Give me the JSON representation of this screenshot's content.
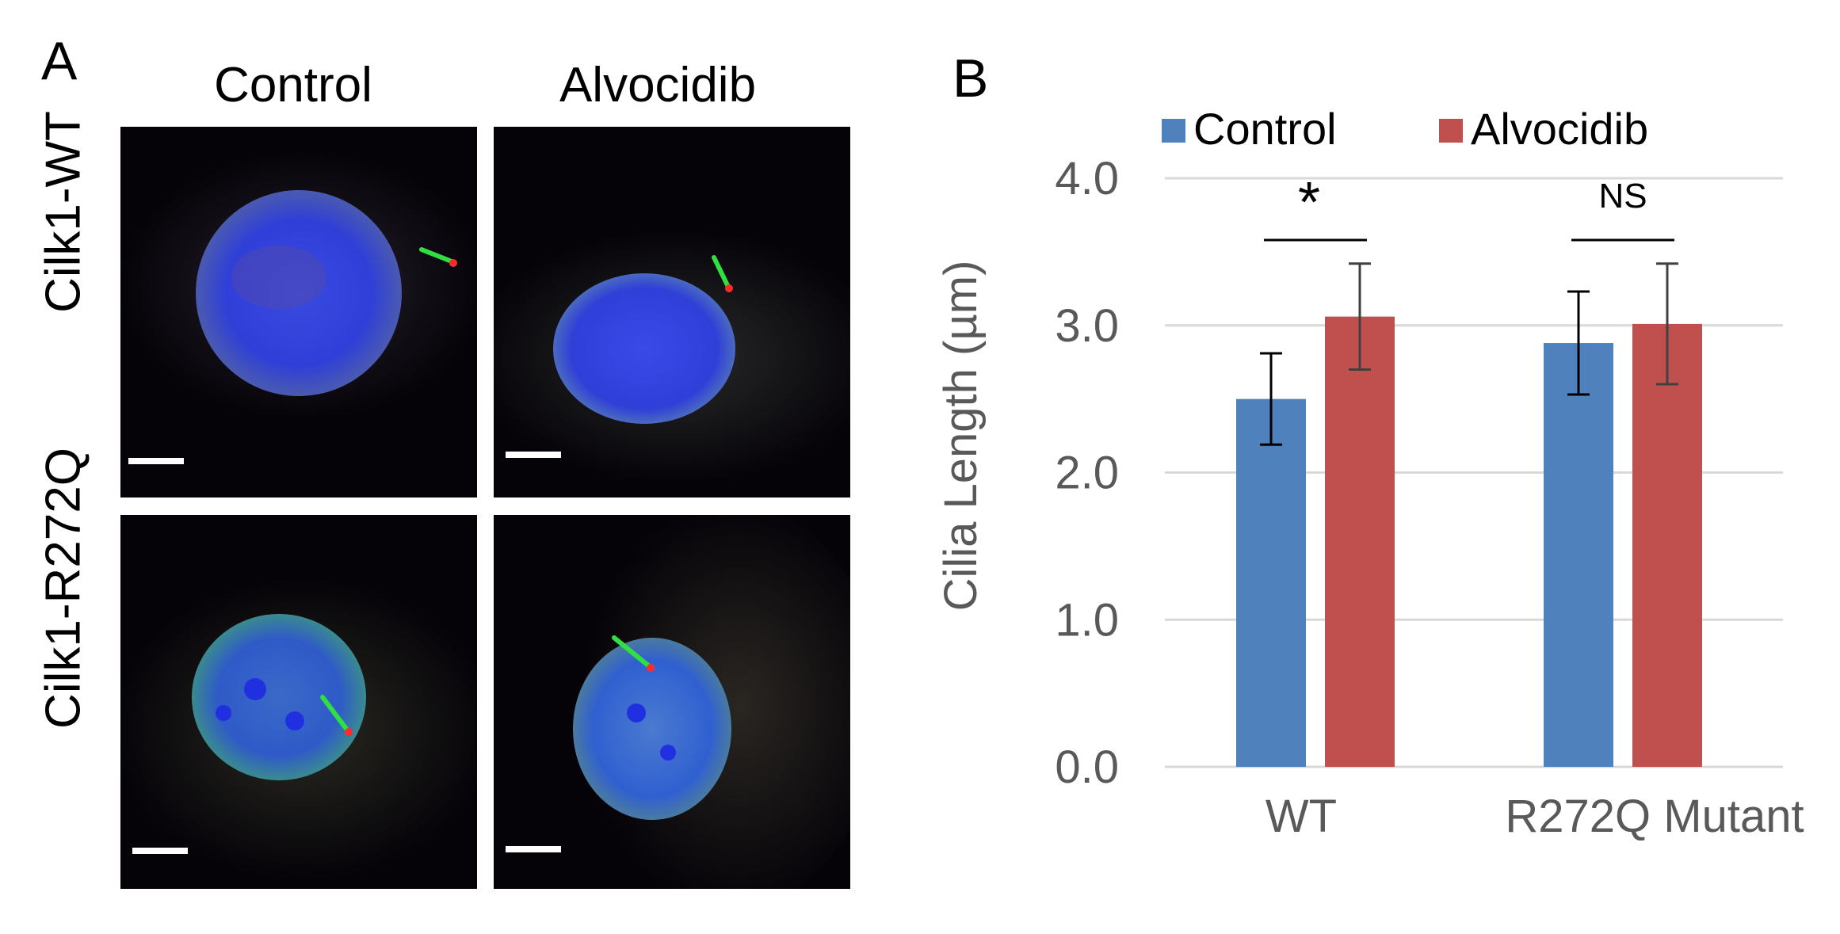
{
  "panel_a": {
    "letter": "A",
    "columns": [
      "Control",
      "Alvocidib"
    ],
    "rows": [
      "Cilk1-WT",
      "Cilk1-R272Q"
    ]
  },
  "panel_b": {
    "letter": "B"
  },
  "colors": {
    "control": "#4f81bd",
    "alvocidib": "#c0504d",
    "axis_text": "#595959",
    "grid": "#d9d9d9",
    "micro_background": "#050308",
    "nucleus": "#2f3fd8",
    "cilium": "#30e040",
    "basal_body": "#ff2a2a",
    "scale_bar": "#ffffff"
  },
  "chart_data": {
    "type": "bar",
    "categories": [
      "WT",
      "R272Q Mutant"
    ],
    "series": [
      {
        "name": "Control",
        "values": [
          2.5,
          2.88
        ],
        "errors": [
          0.31,
          0.35
        ]
      },
      {
        "name": "Alvocidib",
        "values": [
          3.06,
          3.01
        ],
        "errors": [
          0.36,
          0.41
        ]
      }
    ],
    "ylabel": "Cilia Length (µm)",
    "ylim": [
      0,
      4.0
    ],
    "yticks": [
      "0.0",
      "1.0",
      "2.0",
      "3.0",
      "4.0"
    ],
    "grid": true,
    "legend": "top",
    "annotations": [
      "*",
      "NS"
    ]
  }
}
